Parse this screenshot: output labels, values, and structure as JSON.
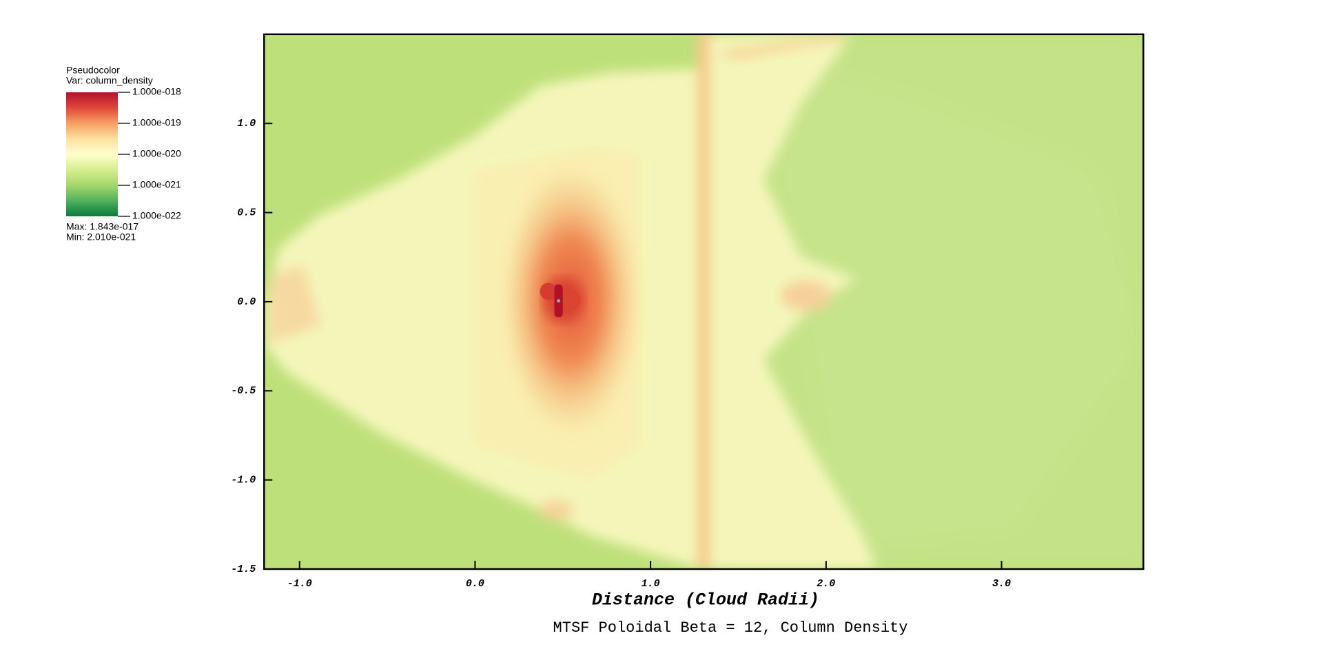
{
  "chart_data": {
    "type": "pseudocolor",
    "title": "MTSF Poloidal Beta = 12, Column Density",
    "x_label": "Distance (Cloud Radii)",
    "xlim": [
      -1.202,
      3.808
    ],
    "ylim": [
      -1.5,
      1.5
    ],
    "xticks": [
      {
        "value": -1.0,
        "label": "-1.0"
      },
      {
        "value": 0.0,
        "label": "0.0"
      },
      {
        "value": 1.0,
        "label": "1.0"
      },
      {
        "value": 2.0,
        "label": "2.0"
      },
      {
        "value": 3.0,
        "label": "3.0"
      }
    ],
    "yticks": [
      -1.5,
      {
        "value": -1.0,
        "label": "-1.0"
      },
      -0.5,
      {
        "value": 0.0,
        "label": "0.0"
      },
      0.5,
      {
        "value": 1.0,
        "label": "1.0"
      }
    ],
    "legend": {
      "title": "Pseudocolor",
      "variable": "Var: column_density",
      "log": true,
      "lim": [
        1e-22,
        1e-18
      ],
      "ticks": [
        {
          "value": 1e-18,
          "label": "1.000e-018"
        },
        {
          "value": 1e-19,
          "label": "1.000e-019"
        },
        {
          "value": 1e-20,
          "label": "1.000e-020"
        },
        {
          "value": 1e-21,
          "label": "1.000e-021"
        },
        {
          "value": 1e-22,
          "label": "1.000e-022"
        }
      ],
      "max": "Max:  1.843e-017",
      "min": "Min:  2.010e-021",
      "colormap": [
        "#b5122b",
        "#e0473a",
        "#f6a063",
        "#fde0a0",
        "#ffffcc",
        "#d6ee8e",
        "#a5d76a",
        "#4fb25c",
        "#0a7a3e"
      ]
    }
  }
}
